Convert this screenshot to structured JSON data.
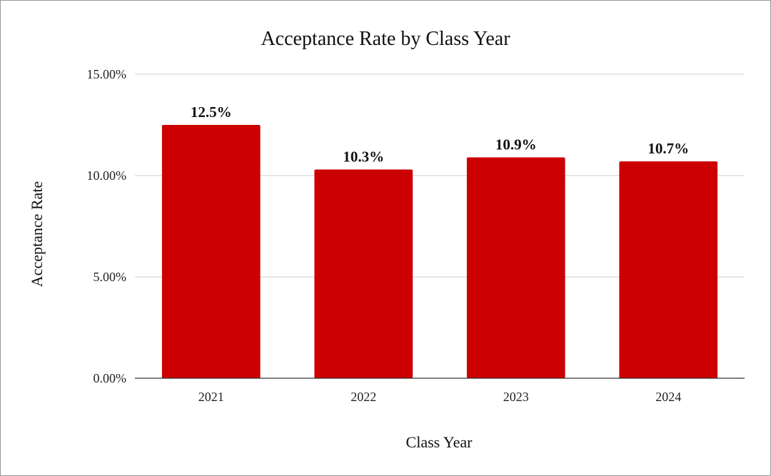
{
  "chart_data": {
    "type": "bar",
    "title": "Acceptance Rate by Class Year",
    "xlabel": "Class Year",
    "ylabel": "Acceptance Rate",
    "categories": [
      "2021",
      "2022",
      "2023",
      "2024"
    ],
    "series": [
      {
        "name": "Acceptance Rate",
        "values": [
          12.5,
          10.3,
          10.9,
          10.7
        ],
        "data_labels": [
          "12.5%",
          "10.3%",
          "10.9%",
          "10.7%"
        ]
      }
    ],
    "ylim": [
      0,
      15
    ],
    "yticks": [
      0,
      5,
      10,
      15
    ],
    "ytick_labels": [
      "0.00%",
      "5.00%",
      "10.00%",
      "15.00%"
    ],
    "grid": true,
    "legend": "none",
    "bar_color": "#cc0000"
  }
}
